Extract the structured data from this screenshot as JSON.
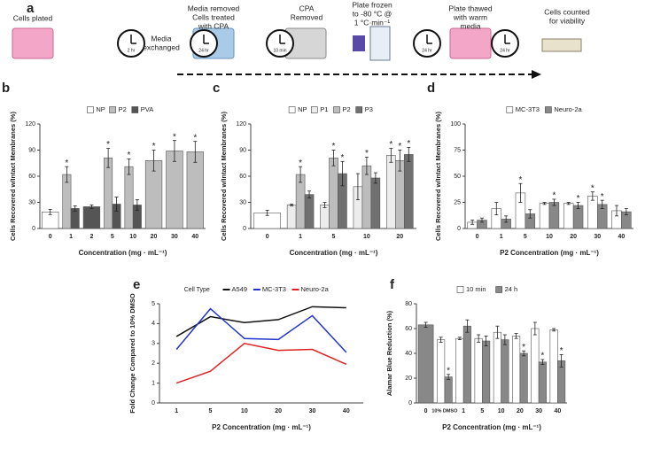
{
  "workflow": {
    "panel": "a",
    "steps": [
      [
        "Cells plated"
      ],
      [
        "Media",
        "exchanged"
      ],
      [
        "Media removed",
        "Cells treated",
        "with CPA"
      ],
      [
        "CPA",
        "Removed"
      ],
      [
        "Plate frozen",
        "to -80 °C @",
        "1 °C·min⁻¹"
      ],
      [
        "Plate thawed",
        "with warm",
        "media"
      ],
      [
        "Cells counted",
        "for viability"
      ]
    ],
    "clocks": [
      "2 hr",
      "24 hr",
      "10 min",
      "24 hr",
      "24 hr"
    ]
  },
  "chart_data": [
    {
      "panel": "b",
      "type": "bar",
      "ylabel": "Cells Recovered w/Intact Membranes (%)",
      "xlabel": "Concentration (mg · mL⁻¹)",
      "categories": [
        "0",
        "1",
        "2",
        "5",
        "10",
        "20",
        "30",
        "40"
      ],
      "ylim": [
        0,
        120
      ],
      "yticks": [
        0,
        30,
        60,
        90,
        120
      ],
      "series": [
        {
          "name": "NP",
          "color": "#ffffff",
          "values": [
            19,
            null,
            null,
            null,
            null,
            null,
            null,
            null
          ],
          "errors": [
            3,
            null,
            null,
            null,
            null,
            null,
            null,
            null
          ],
          "significance": [
            null,
            null,
            null,
            null,
            null,
            null,
            null,
            null
          ]
        },
        {
          "name": "P2",
          "color": "#bdbdbd",
          "values": [
            null,
            62,
            null,
            81,
            71,
            78,
            89,
            88
          ],
          "errors": [
            null,
            9,
            null,
            11,
            9,
            12,
            12,
            12
          ],
          "significance": [
            null,
            "*",
            null,
            "*",
            "*",
            "*",
            "*",
            "*"
          ]
        },
        {
          "name": "PVA",
          "color": "#555555",
          "values": [
            null,
            23,
            25,
            28,
            27,
            null,
            null,
            null
          ],
          "errors": [
            null,
            3,
            2,
            8,
            6,
            null,
            null,
            null
          ],
          "significance": [
            null,
            null,
            null,
            null,
            null,
            null,
            null,
            null
          ]
        }
      ]
    },
    {
      "panel": "c",
      "type": "bar",
      "ylabel": "Cells Recovered w/Intact Membranes (%)",
      "xlabel": "Concentration (mg · mL⁻¹)",
      "categories": [
        "0",
        "1",
        "5",
        "10",
        "20"
      ],
      "ylim": [
        0,
        120
      ],
      "yticks": [
        0,
        30,
        60,
        90,
        120
      ],
      "series": [
        {
          "name": "NP",
          "color": "#ffffff",
          "values": [
            18,
            null,
            null,
            null,
            null
          ],
          "errors": [
            3,
            null,
            null,
            null,
            null
          ],
          "significance": [
            null,
            null,
            null,
            null,
            null
          ]
        },
        {
          "name": "P1",
          "color": "#ececec",
          "values": [
            null,
            27,
            27,
            48,
            84
          ],
          "errors": [
            null,
            1,
            3,
            15,
            8
          ],
          "significance": [
            null,
            null,
            null,
            null,
            "*"
          ]
        },
        {
          "name": "P2",
          "color": "#bdbdbd",
          "values": [
            null,
            62,
            81,
            72,
            78
          ],
          "errors": [
            null,
            9,
            9,
            10,
            12
          ],
          "significance": [
            null,
            "*",
            "*",
            "*",
            "*"
          ]
        },
        {
          "name": "P3",
          "color": "#707070",
          "values": [
            null,
            39,
            63,
            58,
            85
          ],
          "errors": [
            null,
            4,
            14,
            6,
            8
          ],
          "significance": [
            null,
            null,
            "*",
            null,
            "*"
          ]
        }
      ]
    },
    {
      "panel": "d",
      "type": "bar",
      "ylabel": "Cells Recovered w/Intact Membranes (%)",
      "xlabel": "P2 Concentration (mg · mL⁻¹)",
      "categories": [
        "0",
        "1",
        "5",
        "10",
        "20",
        "30",
        "40"
      ],
      "ylim": [
        0,
        100
      ],
      "yticks": [
        0,
        25,
        50,
        75,
        100
      ],
      "series": [
        {
          "name": "MC-3T3",
          "color": "#ffffff",
          "values": [
            6,
            19,
            34,
            24,
            24,
            31,
            17
          ],
          "errors": [
            2,
            6,
            9,
            1,
            1,
            4,
            5
          ],
          "significance": [
            null,
            null,
            "*",
            null,
            null,
            "*",
            null
          ]
        },
        {
          "name": "Neuro-2a",
          "color": "#888888",
          "values": [
            8,
            9,
            14,
            25,
            22,
            23,
            16
          ],
          "errors": [
            2,
            3,
            4,
            3,
            3,
            4,
            3
          ],
          "significance": [
            null,
            null,
            null,
            "*",
            "*",
            "*",
            null
          ]
        }
      ]
    },
    {
      "panel": "e",
      "type": "line",
      "ylabel": "Fold Change Compared to 10% DMSO",
      "xlabel": "P2 Concentration (mg · mL⁻¹)",
      "legend_title": "Cell Type",
      "categories": [
        "1",
        "5",
        "10",
        "20",
        "30",
        "40"
      ],
      "ylim": [
        0,
        5
      ],
      "yticks": [
        0,
        1,
        2,
        3,
        4,
        5
      ],
      "series": [
        {
          "name": "A549",
          "color": "#111111",
          "values": [
            3.35,
            4.35,
            4.05,
            4.2,
            4.85,
            4.8
          ]
        },
        {
          "name": "MC-3T3",
          "color": "#2233cc",
          "values": [
            2.7,
            4.75,
            3.25,
            3.2,
            4.4,
            2.55
          ]
        },
        {
          "name": "Neuro-2a",
          "color": "#dd2222",
          "values": [
            1.0,
            1.6,
            3.0,
            2.65,
            2.7,
            1.95
          ]
        }
      ]
    },
    {
      "panel": "f",
      "type": "bar",
      "ylabel": "Alamar Blue Reduction (%)",
      "xlabel": "P2 Concentration (mg · mL⁻¹)",
      "categories": [
        "0",
        "10% DMSO",
        "1",
        "5",
        "10",
        "20",
        "30",
        "40"
      ],
      "ylim": [
        0,
        80
      ],
      "yticks": [
        0,
        20,
        40,
        60,
        80
      ],
      "series": [
        {
          "name": "10 min",
          "color": "#ffffff",
          "values": [
            null,
            51,
            52,
            52,
            57,
            54,
            60,
            59
          ],
          "errors": [
            null,
            2,
            1,
            3,
            5,
            2,
            5,
            1
          ],
          "significance": [
            null,
            null,
            null,
            null,
            null,
            null,
            null,
            null
          ]
        },
        {
          "name": "24 h",
          "color": "#888888",
          "values": [
            63,
            21,
            62,
            50,
            51,
            40,
            33,
            34
          ],
          "errors": [
            2,
            2,
            5,
            4,
            4,
            2,
            2,
            5
          ],
          "significance": [
            null,
            "*",
            null,
            null,
            null,
            "*",
            "*",
            "*"
          ]
        }
      ]
    }
  ]
}
